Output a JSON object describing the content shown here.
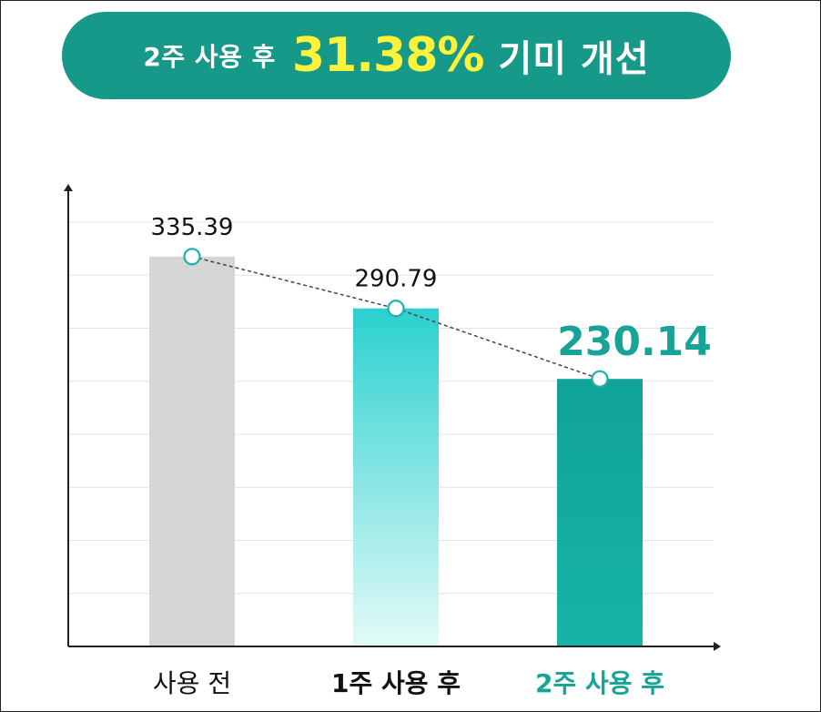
{
  "header": {
    "prefix": "2주 사용 후",
    "percent": "31.38%",
    "suffix": "기미 개선"
  },
  "colors": {
    "header_bg": "#17998a",
    "header_highlight": "#fff23a",
    "bar_before": "#d9d9d9",
    "bar_week1_top": "#2ad0cf",
    "bar_week1_bottom": "#e3fbf8",
    "bar_week2": "#13a89c",
    "accent_text": "#17a396",
    "marker_stroke": "#19b3ad"
  },
  "chart_data": {
    "type": "bar",
    "categories": [
      "사용 전",
      "1주 사용 후",
      "2주 사용 후"
    ],
    "values": [
      335.39,
      290.79,
      230.14
    ],
    "value_labels": [
      "335.39",
      "290.79",
      "230.14"
    ],
    "trend_line": true,
    "ylim": [
      0,
      365
    ],
    "grid": true,
    "title": "",
    "xlabel": "",
    "ylabel": ""
  }
}
